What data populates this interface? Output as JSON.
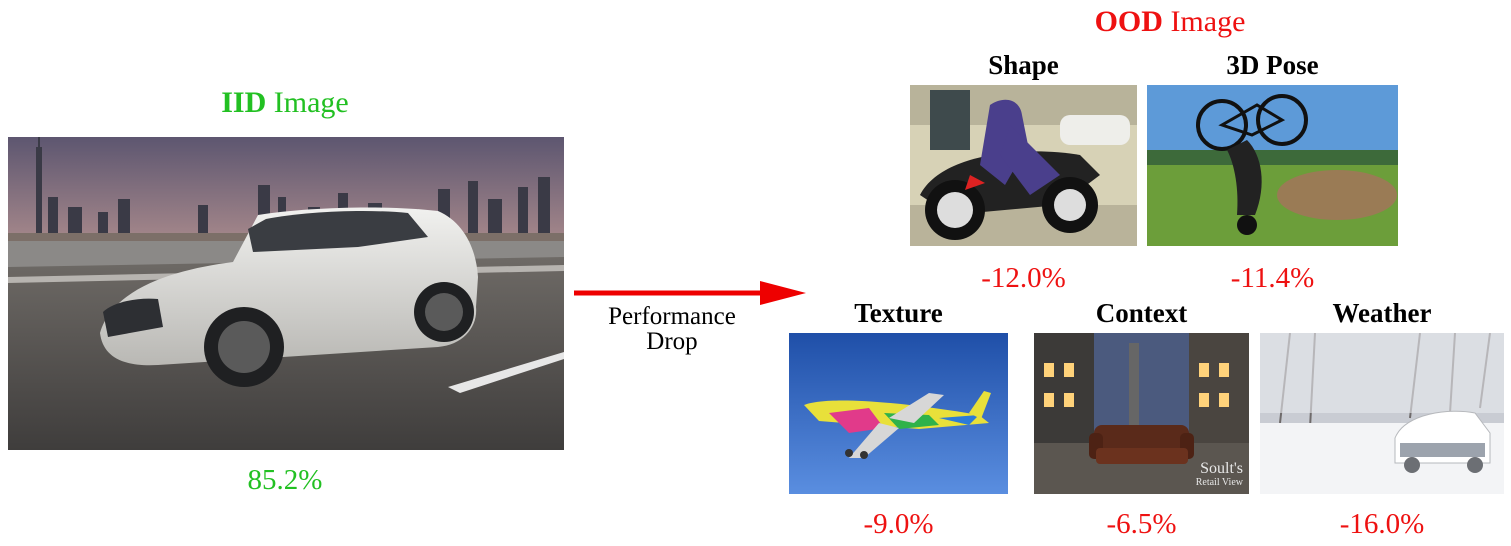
{
  "colors": {
    "iid": "#22c022",
    "ood": "#ee1111",
    "arrow": "#ee0000"
  },
  "iid": {
    "title_bold": "IID",
    "title_rest": "Image",
    "score": "85.2%",
    "image_icon": "car-photo"
  },
  "arrow": {
    "line1": "Performance",
    "line2": "Drop"
  },
  "ood": {
    "title_bold": "OOD",
    "title_rest": "Image",
    "panels": [
      {
        "label": "Shape",
        "drop": "-12.0%",
        "image_icon": "batman-motorcycle-photo"
      },
      {
        "label": "3D Pose",
        "drop": "-11.4%",
        "image_icon": "bmx-flip-photo"
      },
      {
        "label": "Texture",
        "drop": "-9.0%",
        "image_icon": "painted-airplane-photo"
      },
      {
        "label": "Context",
        "drop": "-6.5%",
        "image_icon": "sofa-in-square-photo"
      },
      {
        "label": "Weather",
        "drop": "-16.0%",
        "image_icon": "snowy-car-photo"
      }
    ],
    "context_watermark": {
      "line1": "Soult's",
      "line2": "Retail View"
    }
  }
}
